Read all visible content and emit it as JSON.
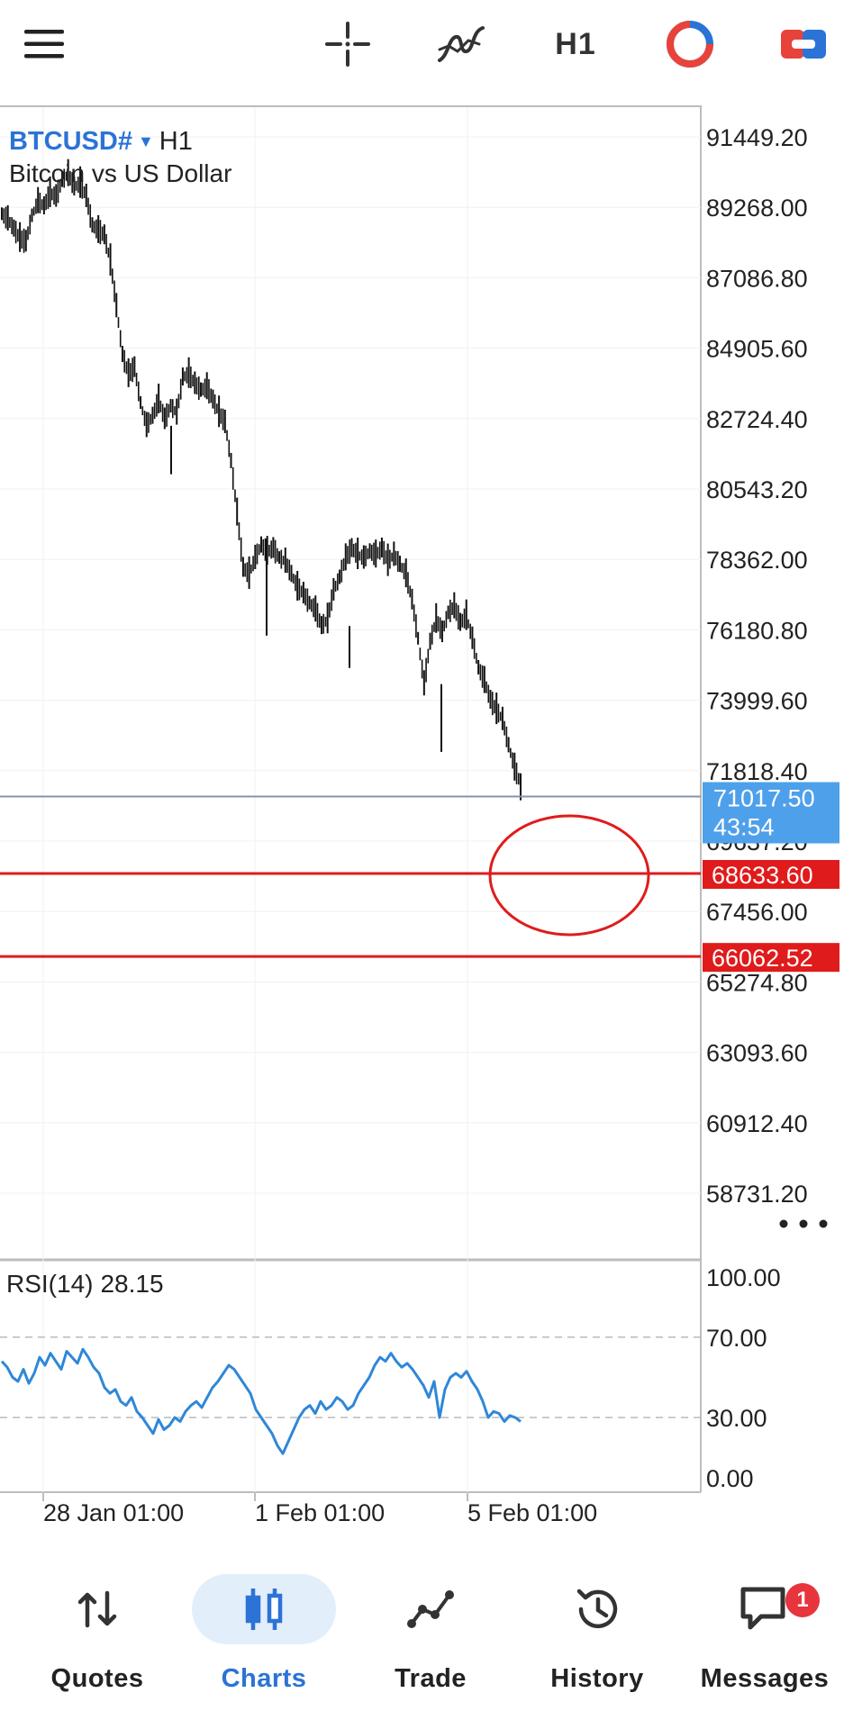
{
  "toolbar": {
    "timeframe": "H1",
    "icons": [
      "menu-icon",
      "crosshair-icon",
      "indicators-icon",
      "timeframe-button",
      "chart-loader-icon",
      "trade-account-icon"
    ]
  },
  "chart": {
    "symbol": "BTCUSD#",
    "timeframe": "H1",
    "description": "Bitcoin vs US Dollar",
    "price_axis": [
      "91449.20",
      "89268.00",
      "87086.80",
      "84905.60",
      "82724.40",
      "80543.20",
      "78362.00",
      "76180.80",
      "73999.60",
      "71818.40",
      "69637.20",
      "67456.00",
      "65274.80",
      "63093.60",
      "60912.40",
      "58731.20"
    ],
    "current_price": "71017.50",
    "countdown": "43:54",
    "levels": [
      "68633.60",
      "66062.52"
    ],
    "colors": {
      "bid_box": "#4fa0ea",
      "level": "#e01b1b",
      "rsi_line": "#2f87d8",
      "bars": "#111111"
    }
  },
  "rsi": {
    "label": "RSI(14)",
    "value": "28.15",
    "axis": [
      "100.00",
      "70.00",
      "30.00",
      "0.00"
    ]
  },
  "time_axis": [
    "28 Jan 01:00",
    "1 Feb 01:00",
    "5 Feb 01:00"
  ],
  "nav": {
    "active": "Charts",
    "messages_badge": "1",
    "items": [
      {
        "label": "Quotes",
        "icon": "quotes-icon"
      },
      {
        "label": "Charts",
        "icon": "charts-icon"
      },
      {
        "label": "Trade",
        "icon": "trade-icon"
      },
      {
        "label": "History",
        "icon": "history-icon"
      },
      {
        "label": "Messages",
        "icon": "messages-icon"
      }
    ]
  }
}
